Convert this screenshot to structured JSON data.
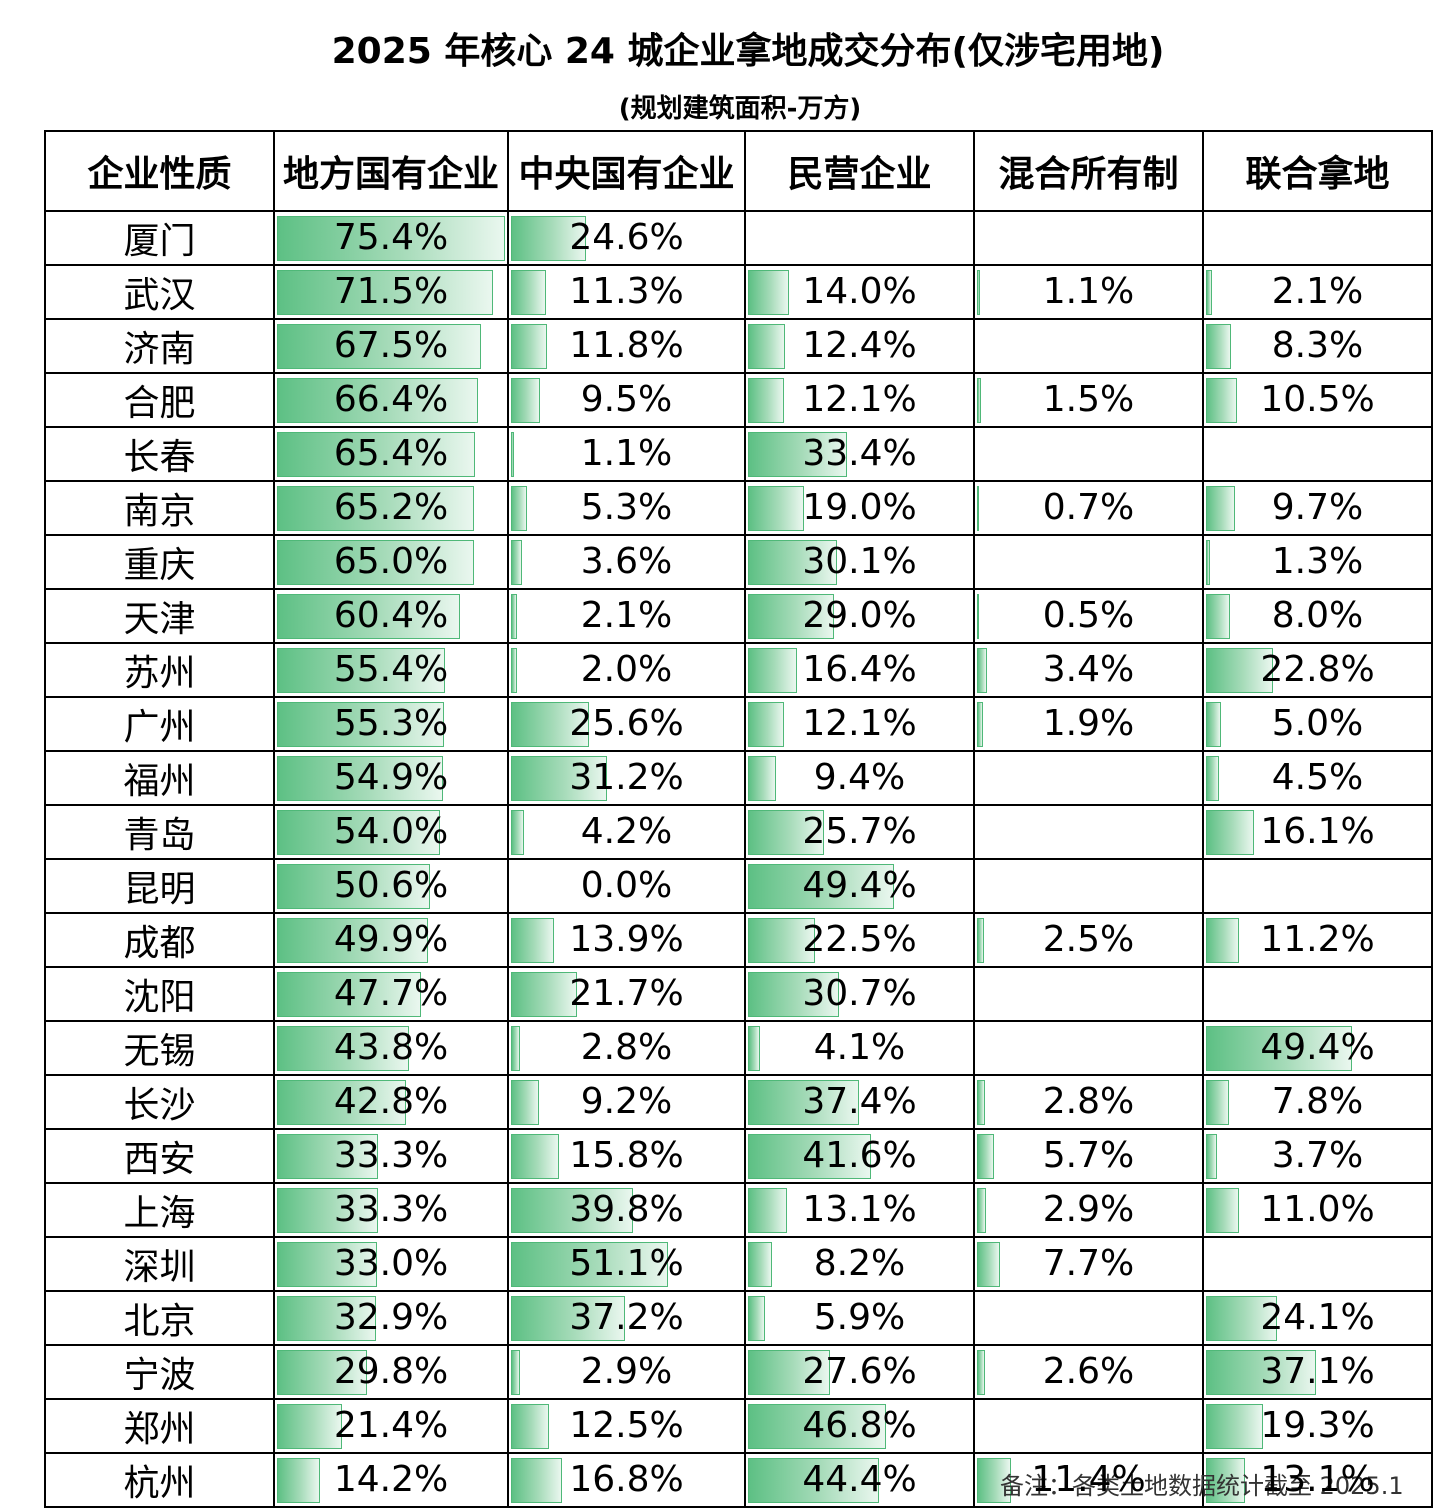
{
  "title": "2025 年核心 24 城企业拿地成交分布(仅涉宅用地)",
  "subtitle": "(规划建筑面积-万方)",
  "note": "备注：各类土地数据统计截至 2025.1",
  "chart_data": {
    "type": "table",
    "columns": [
      "企业性质",
      "地方国有企业",
      "中央国有企业",
      "民营企业",
      "混合所有制",
      "联合拿地"
    ],
    "rows": [
      {
        "city": "厦门",
        "values": [
          "75.4%",
          "24.6%",
          "",
          "",
          ""
        ]
      },
      {
        "city": "武汉",
        "values": [
          "71.5%",
          "11.3%",
          "14.0%",
          "1.1%",
          "2.1%"
        ]
      },
      {
        "city": "济南",
        "values": [
          "67.5%",
          "11.8%",
          "12.4%",
          "",
          "8.3%"
        ]
      },
      {
        "city": "合肥",
        "values": [
          "66.4%",
          "9.5%",
          "12.1%",
          "1.5%",
          "10.5%"
        ]
      },
      {
        "city": "长春",
        "values": [
          "65.4%",
          "1.1%",
          "33.4%",
          "",
          ""
        ]
      },
      {
        "city": "南京",
        "values": [
          "65.2%",
          "5.3%",
          "19.0%",
          "0.7%",
          "9.7%"
        ]
      },
      {
        "city": "重庆",
        "values": [
          "65.0%",
          "3.6%",
          "30.1%",
          "",
          "1.3%"
        ]
      },
      {
        "city": "天津",
        "values": [
          "60.4%",
          "2.1%",
          "29.0%",
          "0.5%",
          "8.0%"
        ]
      },
      {
        "city": "苏州",
        "values": [
          "55.4%",
          "2.0%",
          "16.4%",
          "3.4%",
          "22.8%"
        ]
      },
      {
        "city": "广州",
        "values": [
          "55.3%",
          "25.6%",
          "12.1%",
          "1.9%",
          "5.0%"
        ]
      },
      {
        "city": "福州",
        "values": [
          "54.9%",
          "31.2%",
          "9.4%",
          "",
          "4.5%"
        ]
      },
      {
        "city": "青岛",
        "values": [
          "54.0%",
          "4.2%",
          "25.7%",
          "",
          "16.1%"
        ]
      },
      {
        "city": "昆明",
        "values": [
          "50.6%",
          "0.0%",
          "49.4%",
          "",
          ""
        ]
      },
      {
        "city": "成都",
        "values": [
          "49.9%",
          "13.9%",
          "22.5%",
          "2.5%",
          "11.2%"
        ]
      },
      {
        "city": "沈阳",
        "values": [
          "47.7%",
          "21.7%",
          "30.7%",
          "",
          ""
        ]
      },
      {
        "city": "无锡",
        "values": [
          "43.8%",
          "2.8%",
          "4.1%",
          "",
          "49.4%"
        ]
      },
      {
        "city": "长沙",
        "values": [
          "42.8%",
          "9.2%",
          "37.4%",
          "2.8%",
          "7.8%"
        ]
      },
      {
        "city": "西安",
        "values": [
          "33.3%",
          "15.8%",
          "41.6%",
          "5.7%",
          "3.7%"
        ]
      },
      {
        "city": "上海",
        "values": [
          "33.3%",
          "39.8%",
          "13.1%",
          "2.9%",
          "11.0%"
        ]
      },
      {
        "city": "深圳",
        "values": [
          "33.0%",
          "51.1%",
          "8.2%",
          "7.7%",
          ""
        ]
      },
      {
        "city": "北京",
        "values": [
          "32.9%",
          "37.2%",
          "5.9%",
          "",
          "24.1%"
        ]
      },
      {
        "city": "宁波",
        "values": [
          "29.8%",
          "2.9%",
          "27.6%",
          "2.6%",
          "37.1%"
        ]
      },
      {
        "city": "郑州",
        "values": [
          "21.4%",
          "12.5%",
          "46.8%",
          "",
          "19.3%"
        ]
      },
      {
        "city": "杭州",
        "values": [
          "14.2%",
          "16.8%",
          "44.4%",
          "11.4%",
          "13.1%"
        ]
      }
    ],
    "bar_scale_max_percent": 75.4,
    "bar_color": "#5dc084"
  }
}
